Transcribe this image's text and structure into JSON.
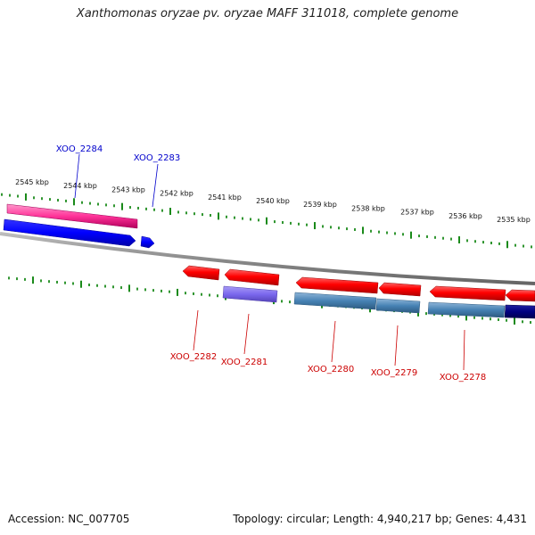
{
  "title": "Xanthomonas oryzae pv. oryzae MAFF 311018, complete genome",
  "footer": {
    "accession": "Accession: NC_007705",
    "topology": "Topology: circular; Length: 4,940,217 bp; Genes: 4,431"
  },
  "ruler": {
    "ticks": [
      {
        "label": "2545 kbp"
      },
      {
        "label": "2544 kbp"
      },
      {
        "label": "2543 kbp"
      },
      {
        "label": "2542 kbp"
      },
      {
        "label": "2541 kbp"
      },
      {
        "label": "2540 kbp"
      },
      {
        "label": "2539 kbp"
      },
      {
        "label": "2538 kbp"
      },
      {
        "label": "2537 kbp"
      },
      {
        "label": "2536 kbp"
      },
      {
        "label": "2535 kbp"
      }
    ]
  },
  "genes": {
    "forward": [
      {
        "label": "XOO_2284",
        "color": "#0000cc"
      },
      {
        "label": "XOO_2283",
        "color": "#0000cc"
      }
    ],
    "reverse": [
      {
        "label": "XOO_2282",
        "color": "#cc0000"
      },
      {
        "label": "XOO_2281",
        "color": "#cc0000"
      },
      {
        "label": "XOO_2280",
        "color": "#cc0000"
      },
      {
        "label": "XOO_2279",
        "color": "#cc0000"
      },
      {
        "label": "XOO_2278",
        "color": "#cc0000"
      }
    ]
  },
  "colors": {
    "tick": "#1a8a1a",
    "backbone": "#8c8c8c",
    "cds_forward": "#0000ff",
    "cds_reverse": "#ff0000",
    "feature_pink": "#ff3399",
    "feature_steel": "#4682b4",
    "feature_slate": "#7b68ee",
    "feature_navy": "#000080"
  }
}
